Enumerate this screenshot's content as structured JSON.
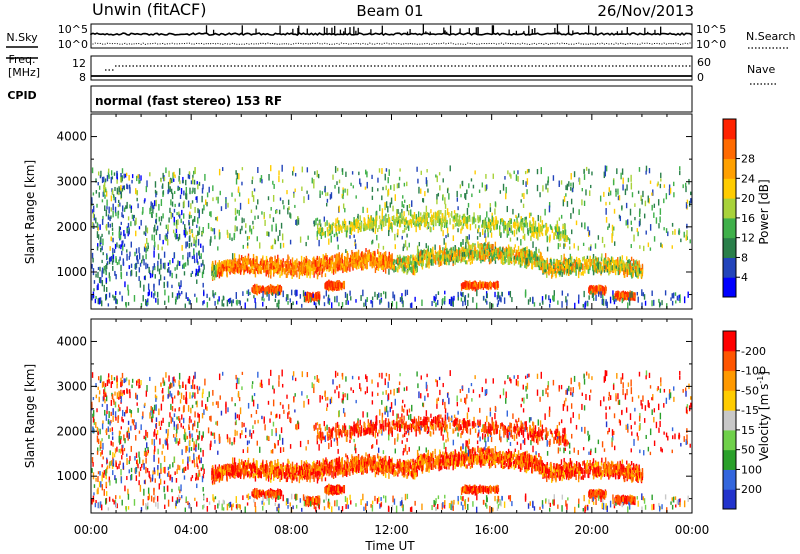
{
  "header": {
    "station": "Unwin (fitACF)",
    "beam": "Beam 01",
    "date": "26/Nov/2013",
    "mode": "normal (fast stereo) 153 RF"
  },
  "strip": {
    "nsky_label": "N.Sky",
    "nsky_ticks": [
      "10^5",
      "10^0"
    ],
    "nsearch_label": "N.Search",
    "freq_label_1": "Freq.",
    "freq_label_2": "[MHz]",
    "freq_ticks": [
      "12",
      "8"
    ],
    "nave_label": "Nave",
    "nave_ticks": [
      "60",
      "0"
    ],
    "cpid_label": "CPID"
  },
  "chart_data": [
    {
      "type": "heatmap",
      "title": "",
      "xlabel": "",
      "ylabel": "Slant Range [km]",
      "xlim": [
        0,
        24
      ],
      "ylim": [
        180,
        4500
      ],
      "yticks": [
        1000,
        2000,
        3000,
        4000
      ],
      "colorbar": {
        "label": "Power [dB]",
        "ticks": [
          "4",
          "8",
          "12",
          "16",
          "20",
          "24",
          "28"
        ],
        "colors": [
          "#0000ff",
          "#2244bb",
          "#2a7f4a",
          "#3fb04a",
          "#a8d23a",
          "#ffcc00",
          "#ffa000",
          "#ff6a00",
          "#ff2200"
        ]
      }
    },
    {
      "type": "heatmap",
      "title": "",
      "xlabel": "Time UT",
      "ylabel": "Slant Range [km]",
      "xlim": [
        0,
        24
      ],
      "ylim": [
        180,
        4500
      ],
      "yticks": [
        1000,
        2000,
        3000,
        4000
      ],
      "xticks": [
        "00:00",
        "04:00",
        "08:00",
        "12:00",
        "16:00",
        "20:00",
        "00:00"
      ],
      "colorbar": {
        "label": "Velocity [m s",
        "label_sup": "-1",
        "label_end": "]",
        "ticks": [
          "200",
          "100",
          "50",
          "15",
          "-15",
          "-50",
          "-100",
          "-200"
        ],
        "colors": [
          "#2233cc",
          "#3366dd",
          "#2aa02a",
          "#6fd04a",
          "#c8c8c8",
          "#ffcc00",
          "#ff9900",
          "#ff5500",
          "#ff0000"
        ]
      }
    }
  ]
}
